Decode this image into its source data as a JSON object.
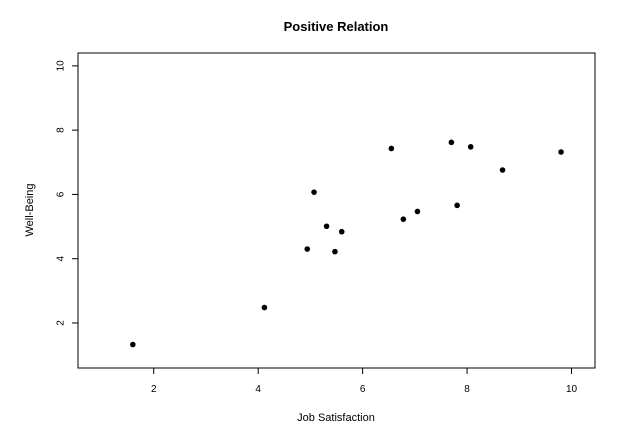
{
  "chart_data": {
    "type": "scatter",
    "title": "Positive Relation",
    "xlabel": "Job Satisfaction",
    "ylabel": "Well-Being",
    "xlim": [
      0.55,
      10.45
    ],
    "ylim": [
      0.6,
      10.4
    ],
    "xticks": [
      2,
      4,
      6,
      8,
      10
    ],
    "yticks": [
      2,
      4,
      6,
      8,
      10
    ],
    "grid": false,
    "point_color": "#000000",
    "points": [
      {
        "x": 1.6,
        "y": 1.33
      },
      {
        "x": 4.12,
        "y": 2.48
      },
      {
        "x": 4.94,
        "y": 4.3
      },
      {
        "x": 5.07,
        "y": 6.07
      },
      {
        "x": 5.31,
        "y": 5.01
      },
      {
        "x": 5.47,
        "y": 4.22
      },
      {
        "x": 5.6,
        "y": 4.84
      },
      {
        "x": 6.55,
        "y": 7.43
      },
      {
        "x": 6.78,
        "y": 5.23
      },
      {
        "x": 7.05,
        "y": 5.47
      },
      {
        "x": 7.7,
        "y": 7.62
      },
      {
        "x": 7.81,
        "y": 5.66
      },
      {
        "x": 8.07,
        "y": 7.48
      },
      {
        "x": 8.68,
        "y": 6.76
      },
      {
        "x": 9.8,
        "y": 7.32
      }
    ]
  }
}
